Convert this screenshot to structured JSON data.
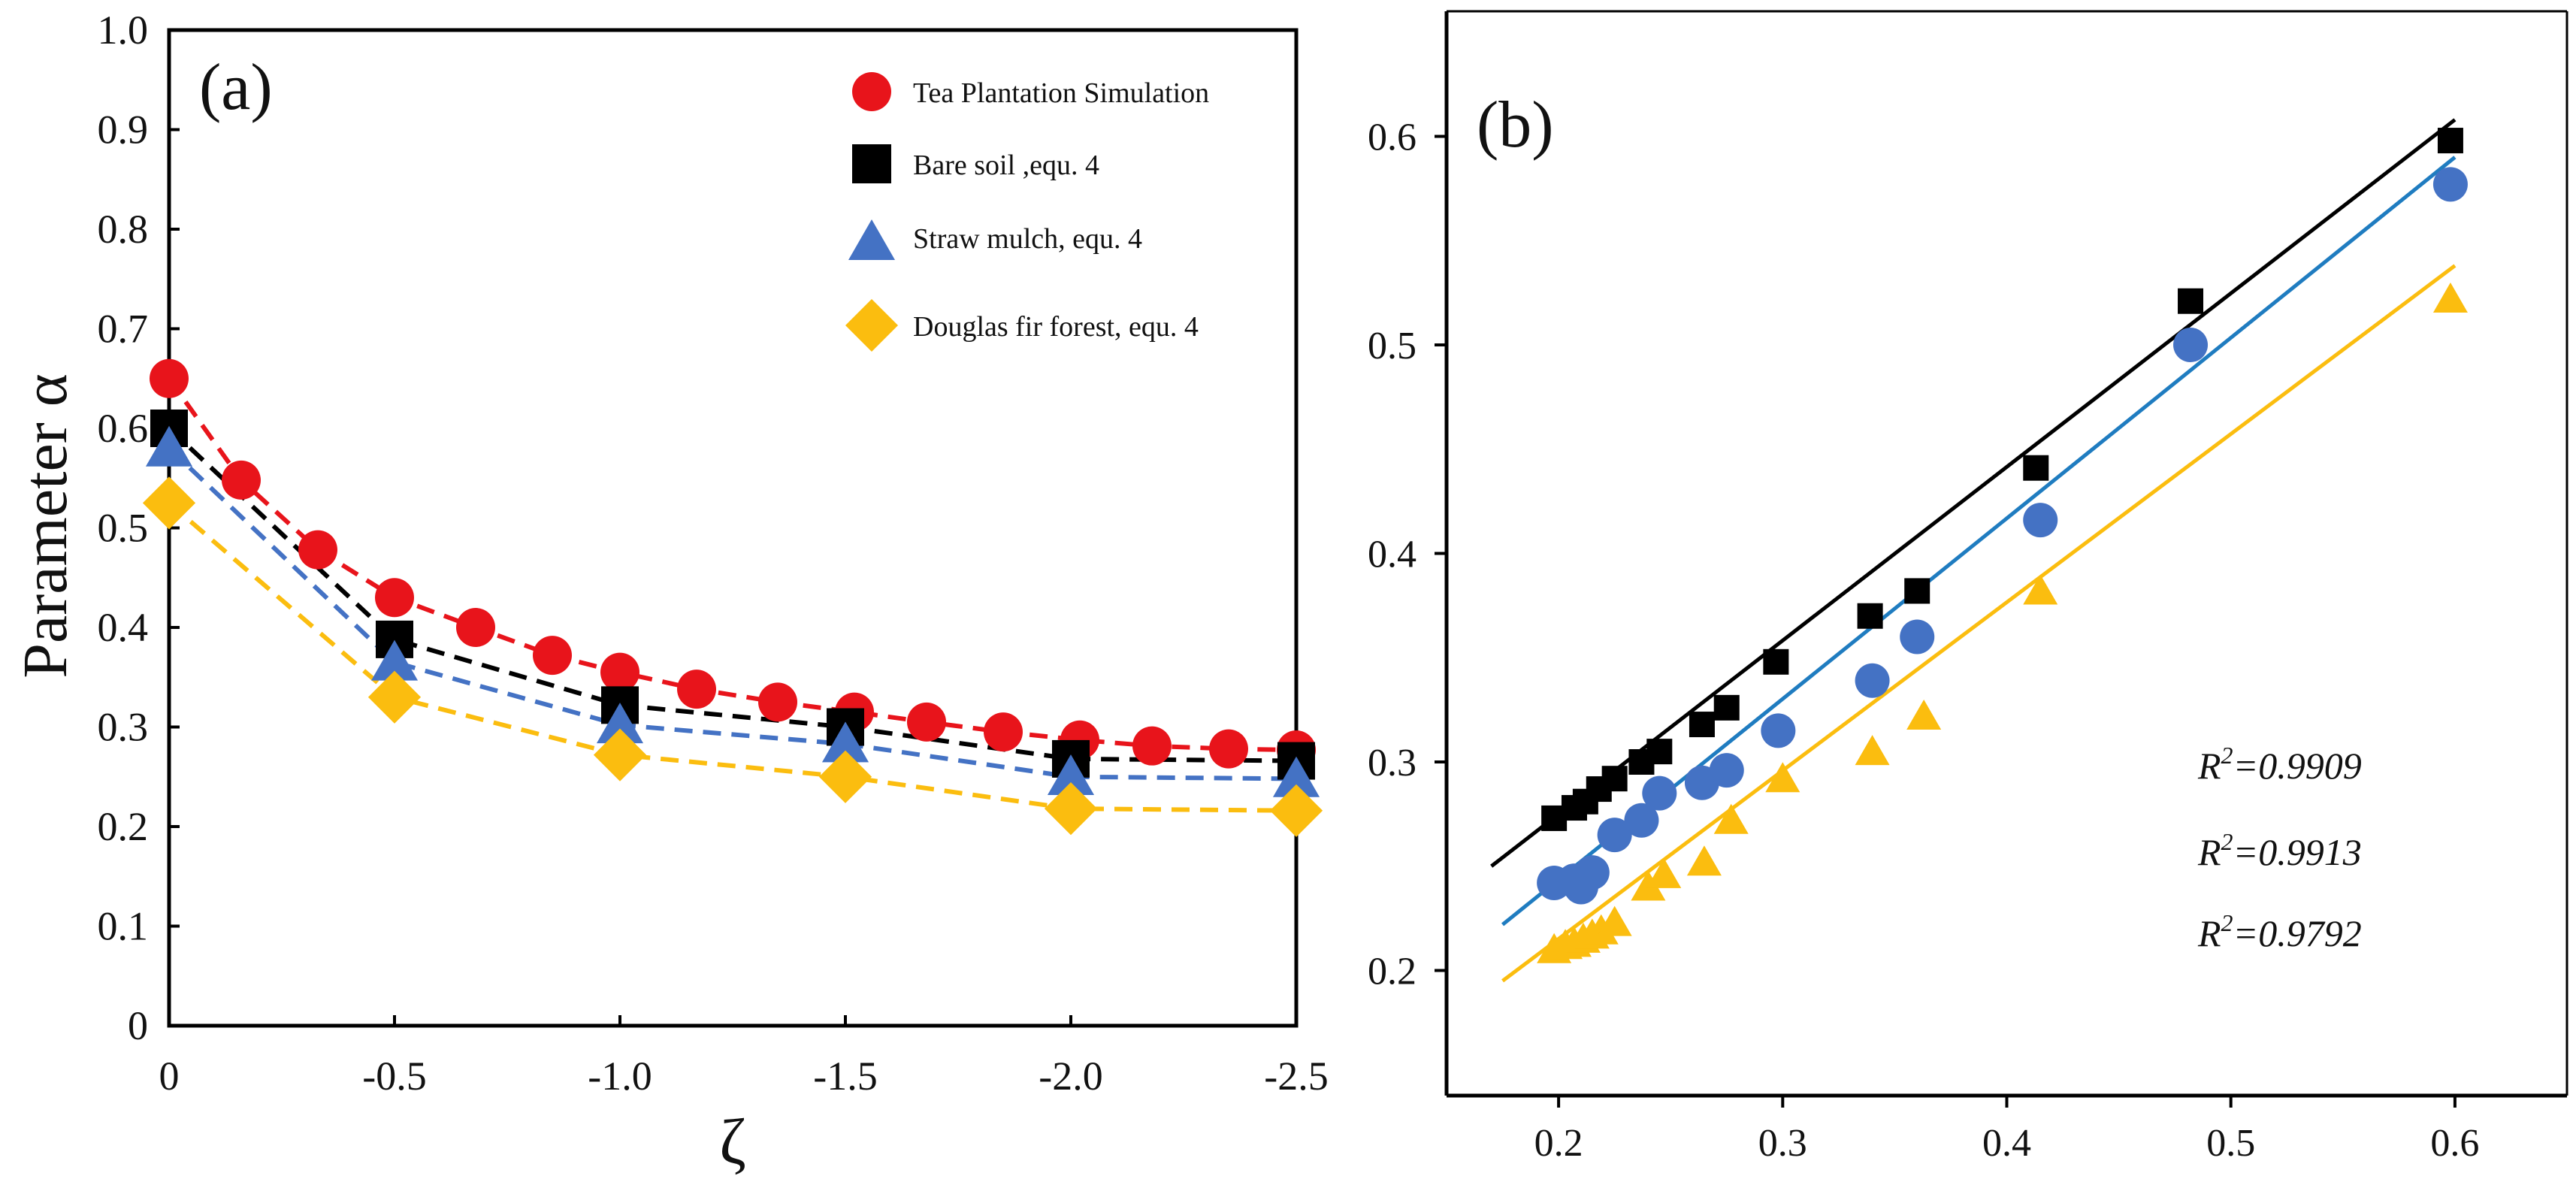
{
  "chart_data": [
    {
      "panel_label": "(a)",
      "type": "line",
      "xlabel": "ζ",
      "ylabel": "Parameter α",
      "xlim": [
        0,
        -2.5
      ],
      "ylim": [
        0,
        1.0
      ],
      "x_ticks": [
        "0",
        "-0.5",
        "-1.0",
        "-1.5",
        "-2.0",
        "-2.5"
      ],
      "y_ticks": [
        "0",
        "0.1",
        "0.2",
        "0.3",
        "0.4",
        "0.5",
        "0.6",
        "0.7",
        "0.8",
        "0.9",
        "1.0"
      ],
      "legend_position": "top-right",
      "series": [
        {
          "name": "Tea Plantation Simulation",
          "marker": "circle",
          "color": "#e8141b",
          "x": [
            0,
            -0.16,
            -0.33,
            -0.5,
            -0.68,
            -0.85,
            -1.0,
            -1.17,
            -1.35,
            -1.52,
            -1.68,
            -1.85,
            -2.02,
            -2.18,
            -2.35,
            -2.5
          ],
          "y": [
            0.65,
            0.548,
            0.478,
            0.43,
            0.4,
            0.372,
            0.355,
            0.338,
            0.325,
            0.315,
            0.305,
            0.295,
            0.287,
            0.281,
            0.278,
            0.277
          ]
        },
        {
          "name": "Bare soil ,equ. 4",
          "marker": "square",
          "color": "#000000",
          "x": [
            0,
            -0.5,
            -1.0,
            -1.5,
            -2.0,
            -2.5
          ],
          "y": [
            0.6,
            0.388,
            0.322,
            0.3,
            0.268,
            0.266
          ]
        },
        {
          "name": "Straw mulch, equ. 4",
          "marker": "triangle",
          "color": "#4472c4",
          "x": [
            0,
            -0.5,
            -1.0,
            -1.5,
            -2.0,
            -2.5
          ],
          "y": [
            0.58,
            0.365,
            0.302,
            0.283,
            0.25,
            0.248
          ]
        },
        {
          "name": "Douglas fir forest, equ. 4",
          "marker": "diamond",
          "color": "#fbbd0f",
          "x": [
            0,
            -0.5,
            -1.0,
            -1.5,
            -2.0,
            -2.5
          ],
          "y": [
            0.525,
            0.33,
            0.272,
            0.25,
            0.218,
            0.216
          ]
        }
      ]
    },
    {
      "panel_label": "(b)",
      "type": "scatter",
      "xlim": [
        0.15,
        0.65
      ],
      "ylim": [
        0.14,
        0.66
      ],
      "x_ticks": [
        "0.2",
        "0.3",
        "0.4",
        "0.5",
        "0.6"
      ],
      "y_ticks": [
        "0.2",
        "0.3",
        "0.4",
        "0.5",
        "0.6"
      ],
      "series": [
        {
          "name": "Bare soil",
          "marker": "square",
          "color": "#000000",
          "x": [
            0.198,
            0.207,
            0.212,
            0.218,
            0.225,
            0.237,
            0.245,
            0.264,
            0.275,
            0.297,
            0.339,
            0.36,
            0.413,
            0.482,
            0.598
          ],
          "y": [
            0.273,
            0.278,
            0.281,
            0.287,
            0.292,
            0.3,
            0.305,
            0.318,
            0.326,
            0.348,
            0.37,
            0.382,
            0.441,
            0.521,
            0.598
          ],
          "fit": {
            "x": [
              0.17,
              0.6
            ],
            "y": [
              0.25,
              0.608
            ]
          },
          "r2": "0.9909"
        },
        {
          "name": "Straw mulch",
          "marker": "circle",
          "color": "#4472c4",
          "x": [
            0.198,
            0.207,
            0.21,
            0.215,
            0.225,
            0.237,
            0.245,
            0.264,
            0.275,
            0.298,
            0.34,
            0.36,
            0.415,
            0.482,
            0.598
          ],
          "y": [
            0.242,
            0.243,
            0.24,
            0.247,
            0.265,
            0.272,
            0.285,
            0.29,
            0.296,
            0.315,
            0.339,
            0.36,
            0.416,
            0.5,
            0.577
          ],
          "fit": {
            "x": [
              0.175,
              0.6
            ],
            "y": [
              0.222,
              0.59
            ]
          },
          "r2": "0.9913"
        },
        {
          "name": "Douglas fir forest",
          "marker": "triangle",
          "color": "#fbbd0f",
          "x": [
            0.198,
            0.203,
            0.207,
            0.211,
            0.215,
            0.219,
            0.225,
            0.24,
            0.247,
            0.265,
            0.277,
            0.3,
            0.34,
            0.363,
            0.415,
            0.598
          ],
          "y": [
            0.21,
            0.212,
            0.213,
            0.215,
            0.217,
            0.219,
            0.223,
            0.24,
            0.246,
            0.252,
            0.272,
            0.292,
            0.305,
            0.322,
            0.382,
            0.522
          ],
          "fit": {
            "x": [
              0.175,
              0.6
            ],
            "y": [
              0.195,
              0.538
            ]
          },
          "r2": "0.9792"
        }
      ],
      "r2_prefix": "R",
      "r2_sup": "2",
      "r2_eq": "="
    }
  ]
}
